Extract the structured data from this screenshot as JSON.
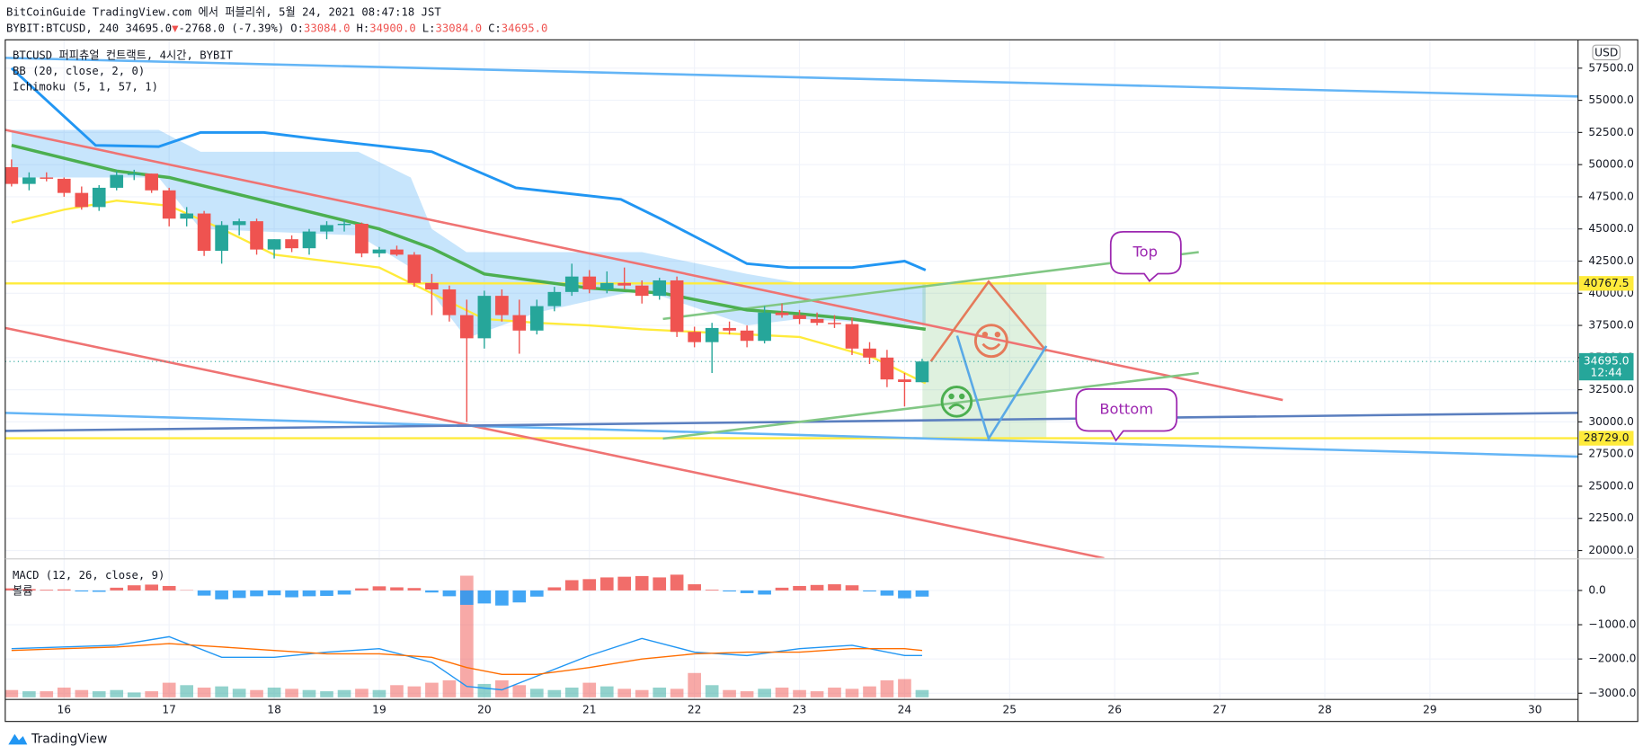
{
  "header": {
    "line1": "BitCoinGuide TradingView.com 에서 퍼블리쉬, 5월 24, 2021 08:47:18 JST",
    "symbol": "BYBIT:BTCUSD, 240 34695.0",
    "arrow": "▼",
    "change": "-2768.0 (-7.39%)",
    "o_label": "O:",
    "o": "33084.0",
    "h_label": "H:",
    "h": "34900.0",
    "l_label": "L:",
    "l": "33084.0",
    "c_label": "C:",
    "c": "34695.0"
  },
  "chart_data": {
    "type": "candlestick",
    "title": "BTCUSD 퍼피츄얼 컨트랙트, 4시간, BYBIT",
    "indicators": [
      "BB (20, close, 2, 0)",
      "Ichimoku (5, 1, 57, 1)"
    ],
    "currency": "USD",
    "x": [
      15.5,
      15.667,
      15.833,
      16,
      16.167,
      16.333,
      16.5,
      16.667,
      16.833,
      17,
      17.167,
      17.333,
      17.5,
      17.667,
      17.833,
      18,
      18.167,
      18.333,
      18.5,
      18.667,
      18.833,
      19,
      19.167,
      19.333,
      19.5,
      19.667,
      19.833,
      20,
      20.167,
      20.333,
      20.5,
      20.667,
      20.833,
      21,
      21.167,
      21.333,
      21.5,
      21.667,
      21.833,
      22,
      22.167,
      22.333,
      22.5,
      22.667,
      22.833,
      23,
      23.167,
      23.333,
      23.5,
      23.667,
      23.833,
      24,
      24.167
    ],
    "open": [
      49800,
      48500,
      49000,
      48900,
      47800,
      46700,
      48200,
      49200,
      49300,
      48000,
      45800,
      46200,
      43300,
      45300,
      45600,
      43400,
      44200,
      43500,
      44800,
      45300,
      45400,
      43100,
      43400,
      43000,
      40800,
      40300,
      38300,
      36500,
      39800,
      38300,
      37100,
      39000,
      40100,
      41300,
      40300,
      40800,
      40600,
      39800,
      41000,
      37000,
      36200,
      37300,
      37100,
      36300,
      38500,
      38300,
      38000,
      37700,
      37600,
      35700,
      35000,
      33300,
      33084
    ],
    "high": [
      50400,
      49400,
      49400,
      49000,
      48300,
      48400,
      49500,
      49600,
      49300,
      48200,
      46700,
      46400,
      45600,
      45800,
      45800,
      44200,
      44500,
      45000,
      45600,
      45700,
      45500,
      43600,
      43700,
      43200,
      41500,
      40600,
      39500,
      40200,
      40300,
      39500,
      39500,
      40500,
      42300,
      41800,
      41700,
      42000,
      41000,
      41200,
      41300,
      37400,
      37700,
      37800,
      37500,
      39000,
      39200,
      38700,
      38500,
      38300,
      38100,
      36200,
      35600,
      33800,
      34900
    ],
    "low": [
      48300,
      48000,
      48700,
      47500,
      46500,
      46400,
      48000,
      48800,
      47800,
      45200,
      45200,
      42900,
      42300,
      44500,
      43000,
      42700,
      43200,
      43000,
      44200,
      44800,
      42800,
      42800,
      42900,
      40500,
      38300,
      37800,
      30000,
      35700,
      37800,
      35300,
      36800,
      38600,
      39800,
      40000,
      40000,
      40300,
      39200,
      39500,
      36600,
      35800,
      33800,
      36800,
      35800,
      36100,
      38100,
      37600,
      37500,
      37300,
      35200,
      34500,
      32700,
      31200,
      33084
    ],
    "close": [
      48500,
      49000,
      48900,
      47800,
      46700,
      48200,
      49200,
      49300,
      48000,
      45800,
      46200,
      43300,
      45300,
      45600,
      43400,
      44200,
      43500,
      44800,
      45300,
      45400,
      43100,
      43400,
      43000,
      40800,
      40300,
      38300,
      36500,
      39800,
      38300,
      37100,
      39000,
      40100,
      41300,
      40300,
      40800,
      40600,
      39800,
      41000,
      37000,
      36200,
      37300,
      37100,
      36300,
      38500,
      38300,
      38000,
      37700,
      37600,
      35700,
      35000,
      33300,
      33100,
      34695
    ],
    "up_color": "#26a69a",
    "down_color": "#ef5350",
    "xlim": [
      15.44,
      30.41
    ],
    "xticks": [
      16,
      17,
      18,
      19,
      20,
      21,
      22,
      23,
      24,
      25,
      26,
      27,
      28,
      29,
      30
    ],
    "ylim": [
      19430,
      59700
    ],
    "yticks": [
      {
        "value": 20000,
        "label": "20000.0"
      },
      {
        "value": 22500,
        "label": "22500.0"
      },
      {
        "value": 25000,
        "label": "25000.0"
      },
      {
        "value": 27500,
        "label": "27500.0"
      },
      {
        "value": 30000,
        "label": "30000.0"
      },
      {
        "value": 32500,
        "label": "32500.0"
      },
      {
        "value": 35000,
        "label": "35000.0"
      },
      {
        "value": 37500,
        "label": "37500.0"
      },
      {
        "value": 40000,
        "label": "40000.0"
      },
      {
        "value": 42500,
        "label": "42500.0"
      },
      {
        "value": 45000,
        "label": "45000.0"
      },
      {
        "value": 47500,
        "label": "47500.0"
      },
      {
        "value": 50000,
        "label": "50000.0"
      },
      {
        "value": 52500,
        "label": "52500.0"
      },
      {
        "value": 55000,
        "label": "55000.0"
      },
      {
        "value": 57500,
        "label": "57500.0"
      }
    ],
    "grid": true,
    "cloud": {
      "color": "rgba(33,150,243,0.25)",
      "x": [
        15.5,
        16.9,
        17.3,
        18.8,
        19.3,
        19.5,
        19.83,
        20.5,
        21.5,
        22.5,
        23,
        24.2
      ],
      "upper": [
        52700,
        52700,
        51000,
        51000,
        49000,
        45000,
        43200,
        43200,
        43200,
        41500,
        40800,
        40800
      ],
      "lower": [
        49000,
        49000,
        45000,
        44500,
        42000,
        40000,
        36500,
        38500,
        40300,
        37500,
        38000,
        37500
      ]
    },
    "overlays": [
      {
        "color": "#2196f3",
        "width": 2.5,
        "x": [
          15.5,
          16.3,
          16.9,
          17.3,
          17.9,
          18.4,
          19.5,
          20.3,
          21.3,
          21.7,
          22.5,
          22.9,
          23.5,
          24,
          24.2
        ],
        "values": [
          57500,
          51500,
          51400,
          52500,
          52500,
          52000,
          51000,
          48200,
          47300,
          45700,
          42300,
          42000,
          42000,
          42500,
          41800
        ]
      },
      {
        "color": "#4caf50",
        "width": 3,
        "x": [
          15.5,
          16.5,
          17,
          18,
          19,
          19.5,
          20,
          21,
          21.7,
          22.5,
          23,
          23.5,
          24.2
        ],
        "values": [
          51500,
          49500,
          49000,
          47000,
          45000,
          43500,
          41500,
          40400,
          40000,
          38700,
          38400,
          38000,
          37200
        ]
      },
      {
        "color": "#ffeb3b",
        "width": 2,
        "x": [
          15.5,
          16,
          16.5,
          17,
          17.5,
          18,
          19,
          19.5,
          20,
          20.5,
          21,
          21.5,
          22,
          23,
          23.7,
          24.2
        ],
        "values": [
          45500,
          46500,
          47200,
          46800,
          45000,
          43000,
          42000,
          40000,
          38000,
          37700,
          37500,
          37200,
          37000,
          36600,
          35000,
          33000
        ]
      }
    ],
    "drawings": [
      {
        "color": "#64b5f6",
        "x": [
          15.44,
          30.41
        ],
        "values": [
          58300,
          55300
        ]
      },
      {
        "color": "#ef7373",
        "x": [
          15.44,
          27.6
        ],
        "values": [
          52700,
          31700
        ]
      },
      {
        "color": "#ef7373",
        "x": [
          15.44,
          25.9
        ],
        "values": [
          37300,
          19400
        ]
      },
      {
        "color": "#64b5f6",
        "x": [
          15.44,
          30.41
        ],
        "values": [
          30700,
          27300
        ]
      },
      {
        "color": "#5b7fbf",
        "x": [
          15.44,
          30.41
        ],
        "values": [
          29300,
          30700
        ]
      },
      {
        "color": "#81c784",
        "x": [
          21.7,
          26.8
        ],
        "values": [
          38000,
          43200
        ]
      },
      {
        "color": "#81c784",
        "x": [
          21.7,
          26.8
        ],
        "values": [
          28700,
          33800
        ]
      },
      {
        "color": "#e57a5a",
        "x": [
          24.25,
          24.8,
          25.35
        ],
        "values": [
          34700,
          40900,
          35500
        ]
      },
      {
        "color": "#5aa9e6",
        "x": [
          24.5,
          24.8,
          25.35
        ],
        "values": [
          36700,
          28700,
          35900
        ]
      }
    ],
    "zone": {
      "color": "rgba(76,175,80,0.18)",
      "x": [
        24.17,
        25.35
      ],
      "values": [
        40800,
        28700
      ]
    },
    "levels": [
      {
        "value": 40767.5,
        "label": "40767.5",
        "color": "#ffeb3b"
      },
      {
        "value": 28729.0,
        "label": "28729.0",
        "color": "#ffeb3b"
      }
    ],
    "last": {
      "value": 34695,
      "label": "34695.0",
      "time": "12:44",
      "color": "#26a69a"
    },
    "annotations": [
      {
        "text": "Top"
      },
      {
        "text": "Bottom"
      }
    ],
    "macd": {
      "title": "MACD (12, 26, close, 9)",
      "subtitle": "볼륨",
      "ylim": [
        -3180,
        920
      ],
      "yticks": [
        {
          "value": 0,
          "label": "0.0"
        },
        {
          "value": -1000,
          "label": "−1000.0"
        },
        {
          "value": -2000,
          "label": "−2000.0"
        },
        {
          "value": -3000,
          "label": "−3000.0"
        }
      ],
      "histogram": [
        60,
        40,
        20,
        30,
        -30,
        -40,
        80,
        150,
        170,
        130,
        10,
        -150,
        -260,
        -220,
        -170,
        -140,
        -200,
        -170,
        -160,
        -120,
        60,
        120,
        90,
        70,
        -60,
        -170,
        -420,
        -380,
        -440,
        -350,
        -180,
        90,
        300,
        330,
        380,
        400,
        420,
        380,
        460,
        180,
        20,
        -30,
        -80,
        -120,
        80,
        130,
        160,
        180,
        150,
        -30,
        -150,
        -230,
        -180
      ],
      "macd_line": {
        "color": "#2196f3",
        "x": [
          15.5,
          16,
          16.5,
          17,
          17.5,
          18,
          18.5,
          19,
          19.5,
          19.833,
          20.167,
          20.5,
          21,
          21.5,
          22,
          22.5,
          23,
          23.5,
          24,
          24.167
        ],
        "values": [
          -1700,
          -1650,
          -1600,
          -1350,
          -1950,
          -1950,
          -1800,
          -1700,
          -2100,
          -2800,
          -2900,
          -2500,
          -1900,
          -1400,
          -1800,
          -1900,
          -1700,
          -1600,
          -1900,
          -1900
        ]
      },
      "signal_line": {
        "color": "#ff6d00",
        "x": [
          15.5,
          16,
          16.5,
          17,
          17.5,
          18,
          18.5,
          19,
          19.5,
          19.833,
          20.167,
          20.5,
          21,
          21.5,
          22,
          22.5,
          23,
          23.5,
          24,
          24.167
        ],
        "values": [
          -1750,
          -1700,
          -1650,
          -1550,
          -1650,
          -1750,
          -1850,
          -1850,
          -1950,
          -2250,
          -2450,
          -2450,
          -2250,
          -2000,
          -1850,
          -1800,
          -1800,
          -1700,
          -1700,
          -1750
        ]
      },
      "volume": [
        6,
        5,
        5,
        8,
        6,
        5,
        6,
        4,
        5,
        12,
        10,
        8,
        9,
        7,
        6,
        8,
        7,
        6,
        5,
        6,
        7,
        6,
        10,
        9,
        12,
        14,
        100,
        11,
        14,
        10,
        7,
        6,
        8,
        12,
        9,
        7,
        6,
        8,
        7,
        20,
        10,
        6,
        5,
        7,
        8,
        6,
        5,
        8,
        7,
        9,
        14,
        15,
        6
      ]
    }
  },
  "footer": {
    "brand": "TradingView"
  }
}
